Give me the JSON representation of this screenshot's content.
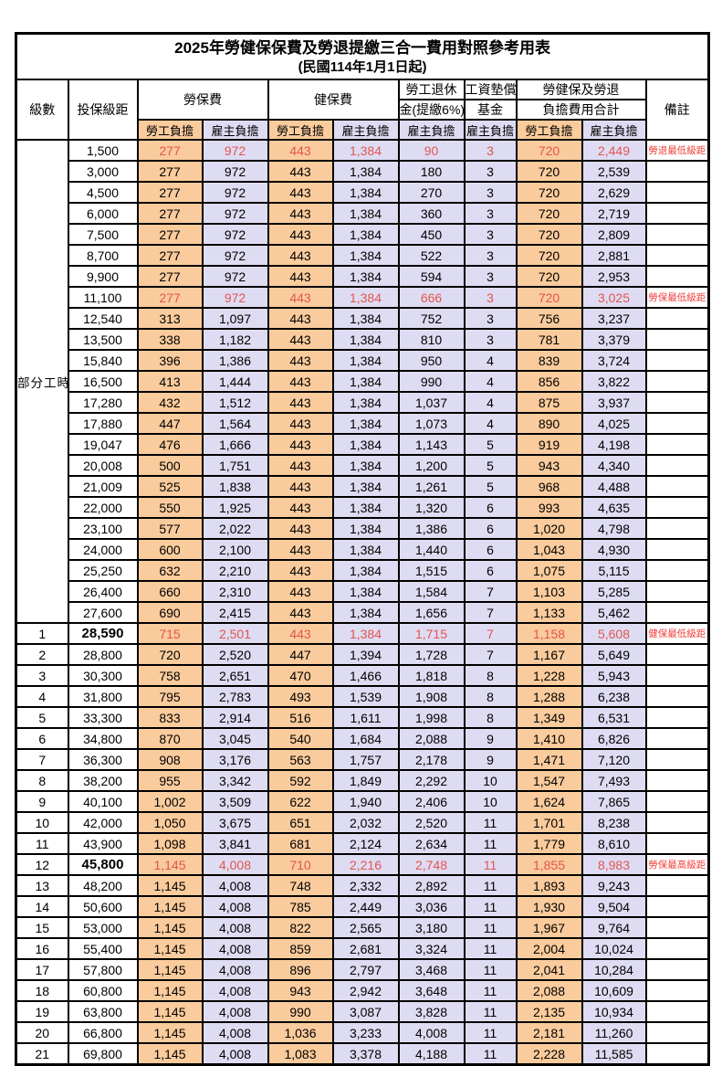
{
  "title": "2025年勞健保保費及勞退提繳三合一費用對照參考用表",
  "subtitle": "(民國114年1月1日起)",
  "colors": {
    "worker_bg": "#FACB9C",
    "employer_bg": "#DEDCF2",
    "highlight_red": "#E25550",
    "remark_red": "#F0413C",
    "border": "#000000"
  },
  "header": {
    "level": "級數",
    "bracket": "投保級距",
    "labor_ins": "勞保費",
    "health_ins": "健保費",
    "pension_line1": "勞工退休",
    "pension_line2": "金(提繳6%)",
    "wage_fund_line1": "工資墊償",
    "wage_fund_line2": "基金",
    "total_line1": "勞健保及勞退",
    "total_line2": "負擔費用合計",
    "remark": "備註",
    "worker": "勞工負擔",
    "employer": "雇主負擔"
  },
  "part_time": {
    "label": "部分工時",
    "rowspan": 23
  },
  "rows": [
    {
      "level": "",
      "bracket": "1,500",
      "lw": "277",
      "le": "972",
      "hw": "443",
      "he": "1,384",
      "pe": "90",
      "ww": "3",
      "tw": "720",
      "te": "2,449",
      "remark": "勞退最低級距",
      "hl": true
    },
    {
      "level": "",
      "bracket": "3,000",
      "lw": "277",
      "le": "972",
      "hw": "443",
      "he": "1,384",
      "pe": "180",
      "ww": "3",
      "tw": "720",
      "te": "2,539",
      "remark": ""
    },
    {
      "level": "",
      "bracket": "4,500",
      "lw": "277",
      "le": "972",
      "hw": "443",
      "he": "1,384",
      "pe": "270",
      "ww": "3",
      "tw": "720",
      "te": "2,629",
      "remark": ""
    },
    {
      "level": "",
      "bracket": "6,000",
      "lw": "277",
      "le": "972",
      "hw": "443",
      "he": "1,384",
      "pe": "360",
      "ww": "3",
      "tw": "720",
      "te": "2,719",
      "remark": ""
    },
    {
      "level": "",
      "bracket": "7,500",
      "lw": "277",
      "le": "972",
      "hw": "443",
      "he": "1,384",
      "pe": "450",
      "ww": "3",
      "tw": "720",
      "te": "2,809",
      "remark": ""
    },
    {
      "level": "",
      "bracket": "8,700",
      "lw": "277",
      "le": "972",
      "hw": "443",
      "he": "1,384",
      "pe": "522",
      "ww": "3",
      "tw": "720",
      "te": "2,881",
      "remark": ""
    },
    {
      "level": "",
      "bracket": "9,900",
      "lw": "277",
      "le": "972",
      "hw": "443",
      "he": "1,384",
      "pe": "594",
      "ww": "3",
      "tw": "720",
      "te": "2,953",
      "remark": ""
    },
    {
      "level": "",
      "bracket": "11,100",
      "lw": "277",
      "le": "972",
      "hw": "443",
      "he": "1,384",
      "pe": "666",
      "ww": "3",
      "tw": "720",
      "te": "3,025",
      "remark": "勞保最低級距",
      "hl": true
    },
    {
      "level": "",
      "bracket": "12,540",
      "lw": "313",
      "le": "1,097",
      "hw": "443",
      "he": "1,384",
      "pe": "752",
      "ww": "3",
      "tw": "756",
      "te": "3,237",
      "remark": ""
    },
    {
      "level": "",
      "bracket": "13,500",
      "lw": "338",
      "le": "1,182",
      "hw": "443",
      "he": "1,384",
      "pe": "810",
      "ww": "3",
      "tw": "781",
      "te": "3,379",
      "remark": ""
    },
    {
      "level": "",
      "bracket": "15,840",
      "lw": "396",
      "le": "1,386",
      "hw": "443",
      "he": "1,384",
      "pe": "950",
      "ww": "4",
      "tw": "839",
      "te": "3,724",
      "remark": ""
    },
    {
      "level": "",
      "bracket": "16,500",
      "lw": "413",
      "le": "1,444",
      "hw": "443",
      "he": "1,384",
      "pe": "990",
      "ww": "4",
      "tw": "856",
      "te": "3,822",
      "remark": ""
    },
    {
      "level": "",
      "bracket": "17,280",
      "lw": "432",
      "le": "1,512",
      "hw": "443",
      "he": "1,384",
      "pe": "1,037",
      "ww": "4",
      "tw": "875",
      "te": "3,937",
      "remark": ""
    },
    {
      "level": "",
      "bracket": "17,880",
      "lw": "447",
      "le": "1,564",
      "hw": "443",
      "he": "1,384",
      "pe": "1,073",
      "ww": "4",
      "tw": "890",
      "te": "4,025",
      "remark": ""
    },
    {
      "level": "",
      "bracket": "19,047",
      "lw": "476",
      "le": "1,666",
      "hw": "443",
      "he": "1,384",
      "pe": "1,143",
      "ww": "5",
      "tw": "919",
      "te": "4,198",
      "remark": ""
    },
    {
      "level": "",
      "bracket": "20,008",
      "lw": "500",
      "le": "1,751",
      "hw": "443",
      "he": "1,384",
      "pe": "1,200",
      "ww": "5",
      "tw": "943",
      "te": "4,340",
      "remark": ""
    },
    {
      "level": "",
      "bracket": "21,009",
      "lw": "525",
      "le": "1,838",
      "hw": "443",
      "he": "1,384",
      "pe": "1,261",
      "ww": "5",
      "tw": "968",
      "te": "4,488",
      "remark": ""
    },
    {
      "level": "",
      "bracket": "22,000",
      "lw": "550",
      "le": "1,925",
      "hw": "443",
      "he": "1,384",
      "pe": "1,320",
      "ww": "6",
      "tw": "993",
      "te": "4,635",
      "remark": ""
    },
    {
      "level": "",
      "bracket": "23,100",
      "lw": "577",
      "le": "2,022",
      "hw": "443",
      "he": "1,384",
      "pe": "1,386",
      "ww": "6",
      "tw": "1,020",
      "te": "4,798",
      "remark": ""
    },
    {
      "level": "",
      "bracket": "24,000",
      "lw": "600",
      "le": "2,100",
      "hw": "443",
      "he": "1,384",
      "pe": "1,440",
      "ww": "6",
      "tw": "1,043",
      "te": "4,930",
      "remark": ""
    },
    {
      "level": "",
      "bracket": "25,250",
      "lw": "632",
      "le": "2,210",
      "hw": "443",
      "he": "1,384",
      "pe": "1,515",
      "ww": "6",
      "tw": "1,075",
      "te": "5,115",
      "remark": ""
    },
    {
      "level": "",
      "bracket": "26,400",
      "lw": "660",
      "le": "2,310",
      "hw": "443",
      "he": "1,384",
      "pe": "1,584",
      "ww": "7",
      "tw": "1,103",
      "te": "5,285",
      "remark": ""
    },
    {
      "level": "",
      "bracket": "27,600",
      "lw": "690",
      "le": "2,415",
      "hw": "443",
      "he": "1,384",
      "pe": "1,656",
      "ww": "7",
      "tw": "1,133",
      "te": "5,462",
      "remark": ""
    },
    {
      "level": "1",
      "bracket": "28,590",
      "lw": "715",
      "le": "2,501",
      "hw": "443",
      "he": "1,384",
      "pe": "1,715",
      "ww": "7",
      "tw": "1,158",
      "te": "5,608",
      "remark": "健保最低級距",
      "hl": true,
      "bold": true
    },
    {
      "level": "2",
      "bracket": "28,800",
      "lw": "720",
      "le": "2,520",
      "hw": "447",
      "he": "1,394",
      "pe": "1,728",
      "ww": "7",
      "tw": "1,167",
      "te": "5,649",
      "remark": ""
    },
    {
      "level": "3",
      "bracket": "30,300",
      "lw": "758",
      "le": "2,651",
      "hw": "470",
      "he": "1,466",
      "pe": "1,818",
      "ww": "8",
      "tw": "1,228",
      "te": "5,943",
      "remark": ""
    },
    {
      "level": "4",
      "bracket": "31,800",
      "lw": "795",
      "le": "2,783",
      "hw": "493",
      "he": "1,539",
      "pe": "1,908",
      "ww": "8",
      "tw": "1,288",
      "te": "6,238",
      "remark": ""
    },
    {
      "level": "5",
      "bracket": "33,300",
      "lw": "833",
      "le": "2,914",
      "hw": "516",
      "he": "1,611",
      "pe": "1,998",
      "ww": "8",
      "tw": "1,349",
      "te": "6,531",
      "remark": ""
    },
    {
      "level": "6",
      "bracket": "34,800",
      "lw": "870",
      "le": "3,045",
      "hw": "540",
      "he": "1,684",
      "pe": "2,088",
      "ww": "9",
      "tw": "1,410",
      "te": "6,826",
      "remark": ""
    },
    {
      "level": "7",
      "bracket": "36,300",
      "lw": "908",
      "le": "3,176",
      "hw": "563",
      "he": "1,757",
      "pe": "2,178",
      "ww": "9",
      "tw": "1,471",
      "te": "7,120",
      "remark": ""
    },
    {
      "level": "8",
      "bracket": "38,200",
      "lw": "955",
      "le": "3,342",
      "hw": "592",
      "he": "1,849",
      "pe": "2,292",
      "ww": "10",
      "tw": "1,547",
      "te": "7,493",
      "remark": ""
    },
    {
      "level": "9",
      "bracket": "40,100",
      "lw": "1,002",
      "le": "3,509",
      "hw": "622",
      "he": "1,940",
      "pe": "2,406",
      "ww": "10",
      "tw": "1,624",
      "te": "7,865",
      "remark": ""
    },
    {
      "level": "10",
      "bracket": "42,000",
      "lw": "1,050",
      "le": "3,675",
      "hw": "651",
      "he": "2,032",
      "pe": "2,520",
      "ww": "11",
      "tw": "1,701",
      "te": "8,238",
      "remark": ""
    },
    {
      "level": "11",
      "bracket": "43,900",
      "lw": "1,098",
      "le": "3,841",
      "hw": "681",
      "he": "2,124",
      "pe": "2,634",
      "ww": "11",
      "tw": "1,779",
      "te": "8,610",
      "remark": ""
    },
    {
      "level": "12",
      "bracket": "45,800",
      "lw": "1,145",
      "le": "4,008",
      "hw": "710",
      "he": "2,216",
      "pe": "2,748",
      "ww": "11",
      "tw": "1,855",
      "te": "8,983",
      "remark": "勞保最高級距",
      "hl": true,
      "bold": true
    },
    {
      "level": "13",
      "bracket": "48,200",
      "lw": "1,145",
      "le": "4,008",
      "hw": "748",
      "he": "2,332",
      "pe": "2,892",
      "ww": "11",
      "tw": "1,893",
      "te": "9,243",
      "remark": ""
    },
    {
      "level": "14",
      "bracket": "50,600",
      "lw": "1,145",
      "le": "4,008",
      "hw": "785",
      "he": "2,449",
      "pe": "3,036",
      "ww": "11",
      "tw": "1,930",
      "te": "9,504",
      "remark": ""
    },
    {
      "level": "15",
      "bracket": "53,000",
      "lw": "1,145",
      "le": "4,008",
      "hw": "822",
      "he": "2,565",
      "pe": "3,180",
      "ww": "11",
      "tw": "1,967",
      "te": "9,764",
      "remark": ""
    },
    {
      "level": "16",
      "bracket": "55,400",
      "lw": "1,145",
      "le": "4,008",
      "hw": "859",
      "he": "2,681",
      "pe": "3,324",
      "ww": "11",
      "tw": "2,004",
      "te": "10,024",
      "remark": ""
    },
    {
      "level": "17",
      "bracket": "57,800",
      "lw": "1,145",
      "le": "4,008",
      "hw": "896",
      "he": "2,797",
      "pe": "3,468",
      "ww": "11",
      "tw": "2,041",
      "te": "10,284",
      "remark": ""
    },
    {
      "level": "18",
      "bracket": "60,800",
      "lw": "1,145",
      "le": "4,008",
      "hw": "943",
      "he": "2,942",
      "pe": "3,648",
      "ww": "11",
      "tw": "2,088",
      "te": "10,609",
      "remark": ""
    },
    {
      "level": "19",
      "bracket": "63,800",
      "lw": "1,145",
      "le": "4,008",
      "hw": "990",
      "he": "3,087",
      "pe": "3,828",
      "ww": "11",
      "tw": "2,135",
      "te": "10,934",
      "remark": ""
    },
    {
      "level": "20",
      "bracket": "66,800",
      "lw": "1,145",
      "le": "4,008",
      "hw": "1,036",
      "he": "3,233",
      "pe": "4,008",
      "ww": "11",
      "tw": "2,181",
      "te": "11,260",
      "remark": ""
    },
    {
      "level": "21",
      "bracket": "69,800",
      "lw": "1,145",
      "le": "4,008",
      "hw": "1,083",
      "he": "3,378",
      "pe": "4,188",
      "ww": "11",
      "tw": "2,228",
      "te": "11,585",
      "remark": ""
    }
  ]
}
